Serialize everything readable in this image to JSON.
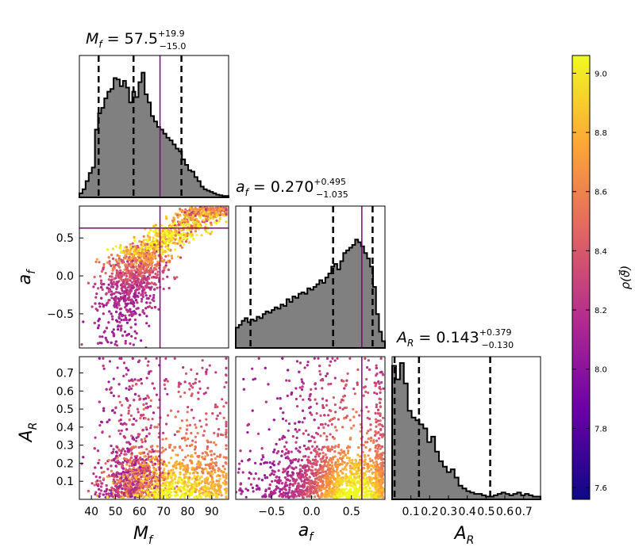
{
  "chart_data": {
    "type": "corner",
    "colormap": {
      "name": "plasma",
      "stops": [
        "#0d0887",
        "#6a00a8",
        "#b12a90",
        "#e16462",
        "#fca636",
        "#f0f921"
      ],
      "label": "ρ(ϑ⃗)",
      "range": [
        7.56,
        9.06
      ],
      "ticks": [
        "7.6",
        "7.8",
        "8.0",
        "8.2",
        "8.4",
        "8.6",
        "8.8",
        "9.0"
      ]
    },
    "truth_color": "#800080",
    "parameters": [
      {
        "symbol": "M",
        "sub": "f",
        "median": "57.5",
        "plus": "+19.9",
        "minus": "−15.0",
        "range": [
          35,
          97
        ],
        "ticks": [
          "40",
          "50",
          "60",
          "70",
          "80",
          "90"
        ],
        "quantiles": [
          43,
          57.5,
          77.4
        ],
        "truth": 68.5,
        "hist": [
          0.03,
          0.06,
          0.12,
          0.18,
          0.22,
          0.5,
          0.62,
          0.66,
          0.73,
          0.78,
          0.8,
          0.88,
          0.87,
          0.82,
          0.86,
          0.81,
          0.7,
          0.78,
          0.74,
          0.85,
          0.92,
          0.76,
          0.7,
          0.6,
          0.56,
          0.52,
          0.5,
          0.47,
          0.44,
          0.42,
          0.39,
          0.36,
          0.34,
          0.28,
          0.24,
          0.2,
          0.19,
          0.15,
          0.12,
          0.08,
          0.06,
          0.05,
          0.04,
          0.03,
          0.02,
          0.015,
          0.01,
          0.01
        ]
      },
      {
        "symbol": "a",
        "sub": "f",
        "median": "0.270",
        "plus": "+0.495",
        "minus": "−1.035",
        "range": [
          -0.95,
          0.92
        ],
        "ticks": [
          "−0.5",
          "0.0",
          "0.5"
        ],
        "quantiles": [
          -0.765,
          0.27,
          0.765
        ],
        "truth": 0.63,
        "hist": [
          0.15,
          0.17,
          0.2,
          0.22,
          0.19,
          0.21,
          0.2,
          0.23,
          0.22,
          0.25,
          0.27,
          0.26,
          0.28,
          0.3,
          0.29,
          0.32,
          0.31,
          0.36,
          0.34,
          0.38,
          0.37,
          0.4,
          0.41,
          0.4,
          0.44,
          0.43,
          0.45,
          0.47,
          0.5,
          0.48,
          0.52,
          0.55,
          0.6,
          0.62,
          0.58,
          0.64,
          0.7,
          0.72,
          0.74,
          0.76,
          0.8,
          0.78,
          0.75,
          0.7,
          0.66,
          0.6,
          0.45,
          0.25,
          0.12,
          0.05
        ]
      },
      {
        "symbol": "A",
        "sub": "R",
        "median": "0.143",
        "plus": "+0.379",
        "minus": "−0.130",
        "range": [
          0,
          0.79
        ],
        "ticks": [
          "0.1",
          "0.2",
          "0.3",
          "0.4",
          "0.5",
          "0.6",
          "0.7"
        ],
        "tick_values": [
          0.1,
          0.2,
          0.3,
          0.4,
          0.5,
          0.6,
          0.7
        ],
        "y_ticks": [
          "0.1",
          "0.2",
          "0.3",
          "0.4",
          "0.5",
          "0.6",
          "0.7"
        ],
        "quantiles": [
          0.013,
          0.143,
          0.522
        ],
        "hist": [
          0.98,
          0.88,
          1.0,
          0.85,
          0.65,
          0.6,
          0.58,
          0.55,
          0.52,
          0.42,
          0.46,
          0.35,
          0.28,
          0.24,
          0.2,
          0.22,
          0.16,
          0.1,
          0.08,
          0.06,
          0.05,
          0.04,
          0.04,
          0.03,
          0.02,
          0.02,
          0.03,
          0.04,
          0.05,
          0.04,
          0.03,
          0.04,
          0.05,
          0.03,
          0.04,
          0.03,
          0.02,
          0.02
        ]
      }
    ]
  }
}
